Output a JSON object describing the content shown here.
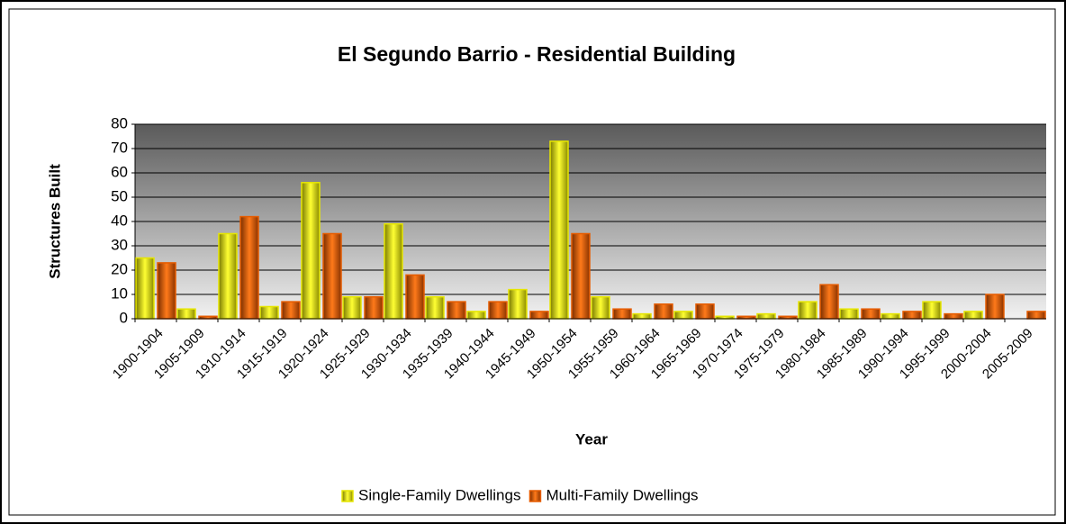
{
  "chart_data": {
    "type": "bar",
    "title": "El Segundo Barrio - Residential Building",
    "x_label": "Year",
    "y_label": "Structures Built",
    "categories": [
      "1900-1904",
      "1905-1909",
      "1910-1914",
      "1915-1919",
      "1920-1924",
      "1925-1929",
      "1930-1934",
      "1935-1939",
      "1940-1944",
      "1945-1949",
      "1950-1954",
      "1955-1959",
      "1960-1964",
      "1965-1969",
      "1970-1974",
      "1975-1979",
      "1980-1984",
      "1985-1989",
      "1990-1994",
      "1995-1999",
      "2000-2004",
      "2005-2009"
    ],
    "series": [
      {
        "name": "Single-Family Dwellings",
        "color": "#e6e600",
        "values": [
          25,
          4,
          35,
          5,
          56,
          9,
          39,
          9,
          3,
          12,
          73,
          9,
          2,
          3,
          1,
          2,
          7,
          4,
          2,
          7,
          3,
          0
        ]
      },
      {
        "name": "Multi-Family Dwellings",
        "color": "#e65c00",
        "values": [
          23,
          1,
          42,
          7,
          35,
          9,
          18,
          7,
          7,
          3,
          35,
          4,
          6,
          6,
          1,
          1,
          14,
          4,
          3,
          2,
          10,
          3
        ]
      }
    ],
    "ylim": [
      0,
      80
    ],
    "yticks": [
      0,
      10,
      20,
      30,
      40,
      50,
      60,
      70,
      80
    ],
    "grid": true,
    "legend": "bottom"
  }
}
